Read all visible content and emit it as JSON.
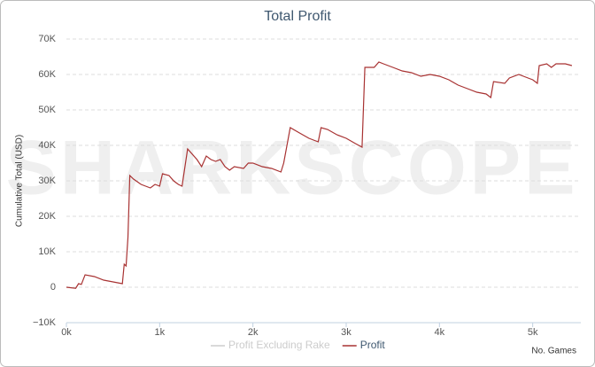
{
  "chart_data": {
    "type": "line",
    "title": "Total Profit",
    "watermark": "SHARKSCOPE",
    "y_label": "Cumulative Total (USD)",
    "x_label": "No. Games",
    "x": [
      0,
      100,
      130,
      160,
      200,
      300,
      400,
      500,
      600,
      620,
      640,
      660,
      680,
      720,
      800,
      850,
      900,
      950,
      1000,
      1030,
      1100,
      1150,
      1200,
      1240,
      1300,
      1400,
      1450,
      1500,
      1550,
      1600,
      1650,
      1700,
      1750,
      1800,
      1900,
      1950,
      2000,
      2100,
      2200,
      2300,
      2330,
      2400,
      2500,
      2600,
      2650,
      2700,
      2730,
      2800,
      2900,
      3000,
      3100,
      3170,
      3200,
      3300,
      3350,
      3400,
      3500,
      3600,
      3700,
      3800,
      3900,
      4000,
      4100,
      4200,
      4300,
      4400,
      4500,
      4550,
      4580,
      4700,
      4750,
      4850,
      4950,
      5000,
      5050,
      5070,
      5150,
      5200,
      5250,
      5350,
      5420
    ],
    "series": [
      {
        "name": "Profit",
        "color": "#a83232",
        "values": [
          0,
          -300,
          1000,
          800,
          3500,
          3000,
          2000,
          1500,
          1000,
          6500,
          6000,
          14000,
          31500,
          30500,
          29000,
          28500,
          28000,
          29000,
          28500,
          32000,
          31500,
          30000,
          29000,
          28500,
          39000,
          36000,
          34000,
          37000,
          36000,
          35500,
          36000,
          34000,
          33000,
          34000,
          33500,
          35000,
          35000,
          34000,
          33500,
          32500,
          35000,
          45000,
          43500,
          42000,
          41500,
          41000,
          45000,
          44500,
          43000,
          42000,
          40500,
          39500,
          62000,
          62000,
          63500,
          63000,
          62000,
          61000,
          60500,
          59500,
          60000,
          59500,
          58500,
          57000,
          56000,
          55000,
          54500,
          53500,
          58000,
          57500,
          59000,
          60000,
          59000,
          58500,
          57500,
          62500,
          63000,
          62000,
          63000,
          63000,
          62500
        ]
      }
    ],
    "hidden_series": [
      {
        "name": "Profit Excluding Rake",
        "color": "#cccccc"
      }
    ],
    "xlim": [
      0,
      5440
    ],
    "xticks": [
      {
        "value": 0,
        "label": "0k"
      },
      {
        "value": 1000,
        "label": "1k"
      },
      {
        "value": 2000,
        "label": "2k"
      },
      {
        "value": 3000,
        "label": "3k"
      },
      {
        "value": 4000,
        "label": "4k"
      },
      {
        "value": 5000,
        "label": "5k"
      }
    ],
    "ylim": [
      -10000,
      70000
    ],
    "yticks": [
      {
        "value": -10000,
        "label": "−10K"
      },
      {
        "value": 0,
        "label": "0"
      },
      {
        "value": 10000,
        "label": "10K"
      },
      {
        "value": 20000,
        "label": "20K"
      },
      {
        "value": 30000,
        "label": "30K"
      },
      {
        "value": 40000,
        "label": "40K"
      },
      {
        "value": 50000,
        "label": "50K"
      },
      {
        "value": 60000,
        "label": "60K"
      },
      {
        "value": 70000,
        "label": "70K"
      }
    ],
    "grid": true
  }
}
